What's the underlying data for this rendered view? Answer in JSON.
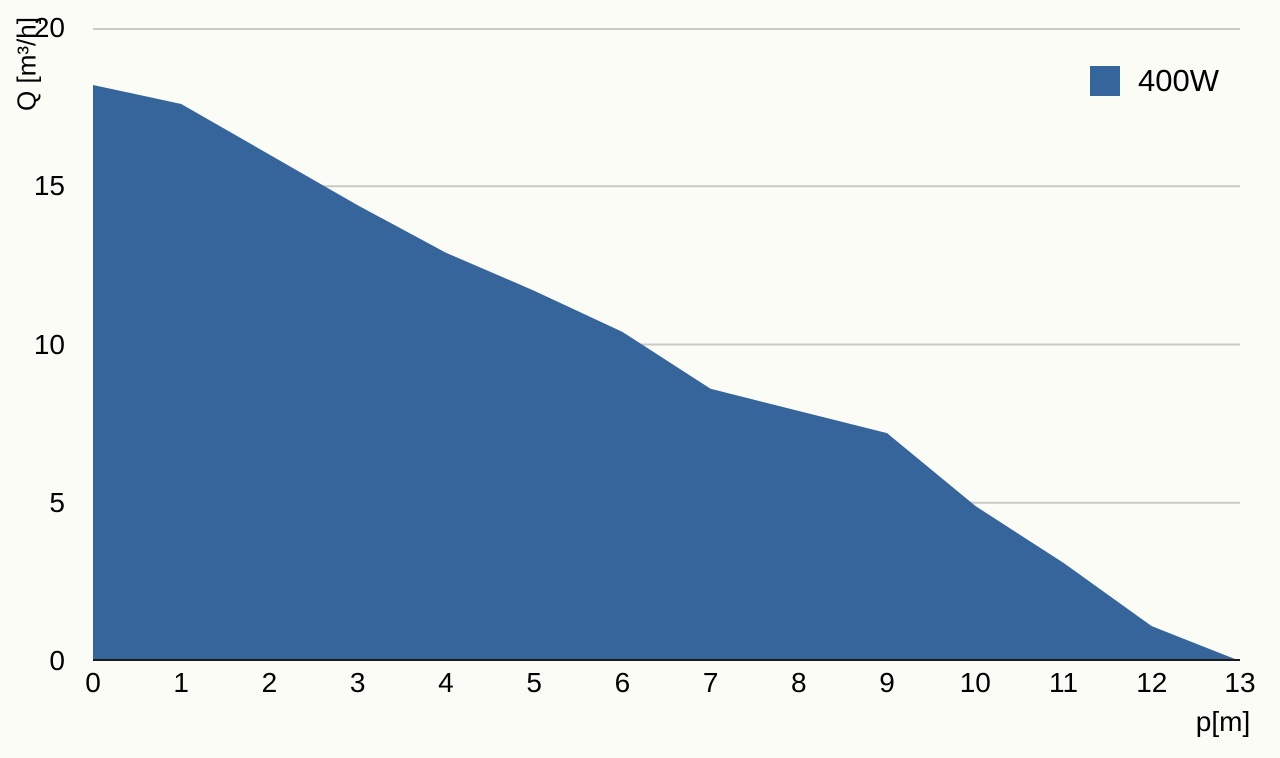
{
  "chart_data": {
    "type": "area",
    "title": "",
    "xlabel": "p[m]",
    "ylabel": "Q [m³/h]",
    "x": [
      0,
      1,
      2,
      3,
      4,
      5,
      6,
      7,
      8,
      9,
      10,
      11,
      12,
      13
    ],
    "series": [
      {
        "name": "400W",
        "values": [
          18.2,
          17.6,
          16.0,
          14.4,
          12.9,
          11.7,
          10.4,
          8.6,
          7.9,
          7.2,
          4.9,
          3.1,
          1.1,
          0
        ]
      }
    ],
    "xlim": [
      0,
      13
    ],
    "ylim": [
      0,
      20
    ],
    "xticks": [
      0,
      1,
      2,
      3,
      4,
      5,
      6,
      7,
      8,
      9,
      10,
      11,
      12,
      13
    ],
    "yticks": [
      0,
      5,
      10,
      15,
      20
    ],
    "grid": "horizontal-only",
    "legend": {
      "position": "top-right",
      "entries": [
        {
          "label": "400W",
          "color": "#36659b"
        }
      ]
    },
    "colors": {
      "area_fill": "#36659b",
      "gridline": "#c9c9c9",
      "axis_line": "#1b1b1b",
      "background": "#fcfcf6",
      "text": "#000000"
    }
  }
}
